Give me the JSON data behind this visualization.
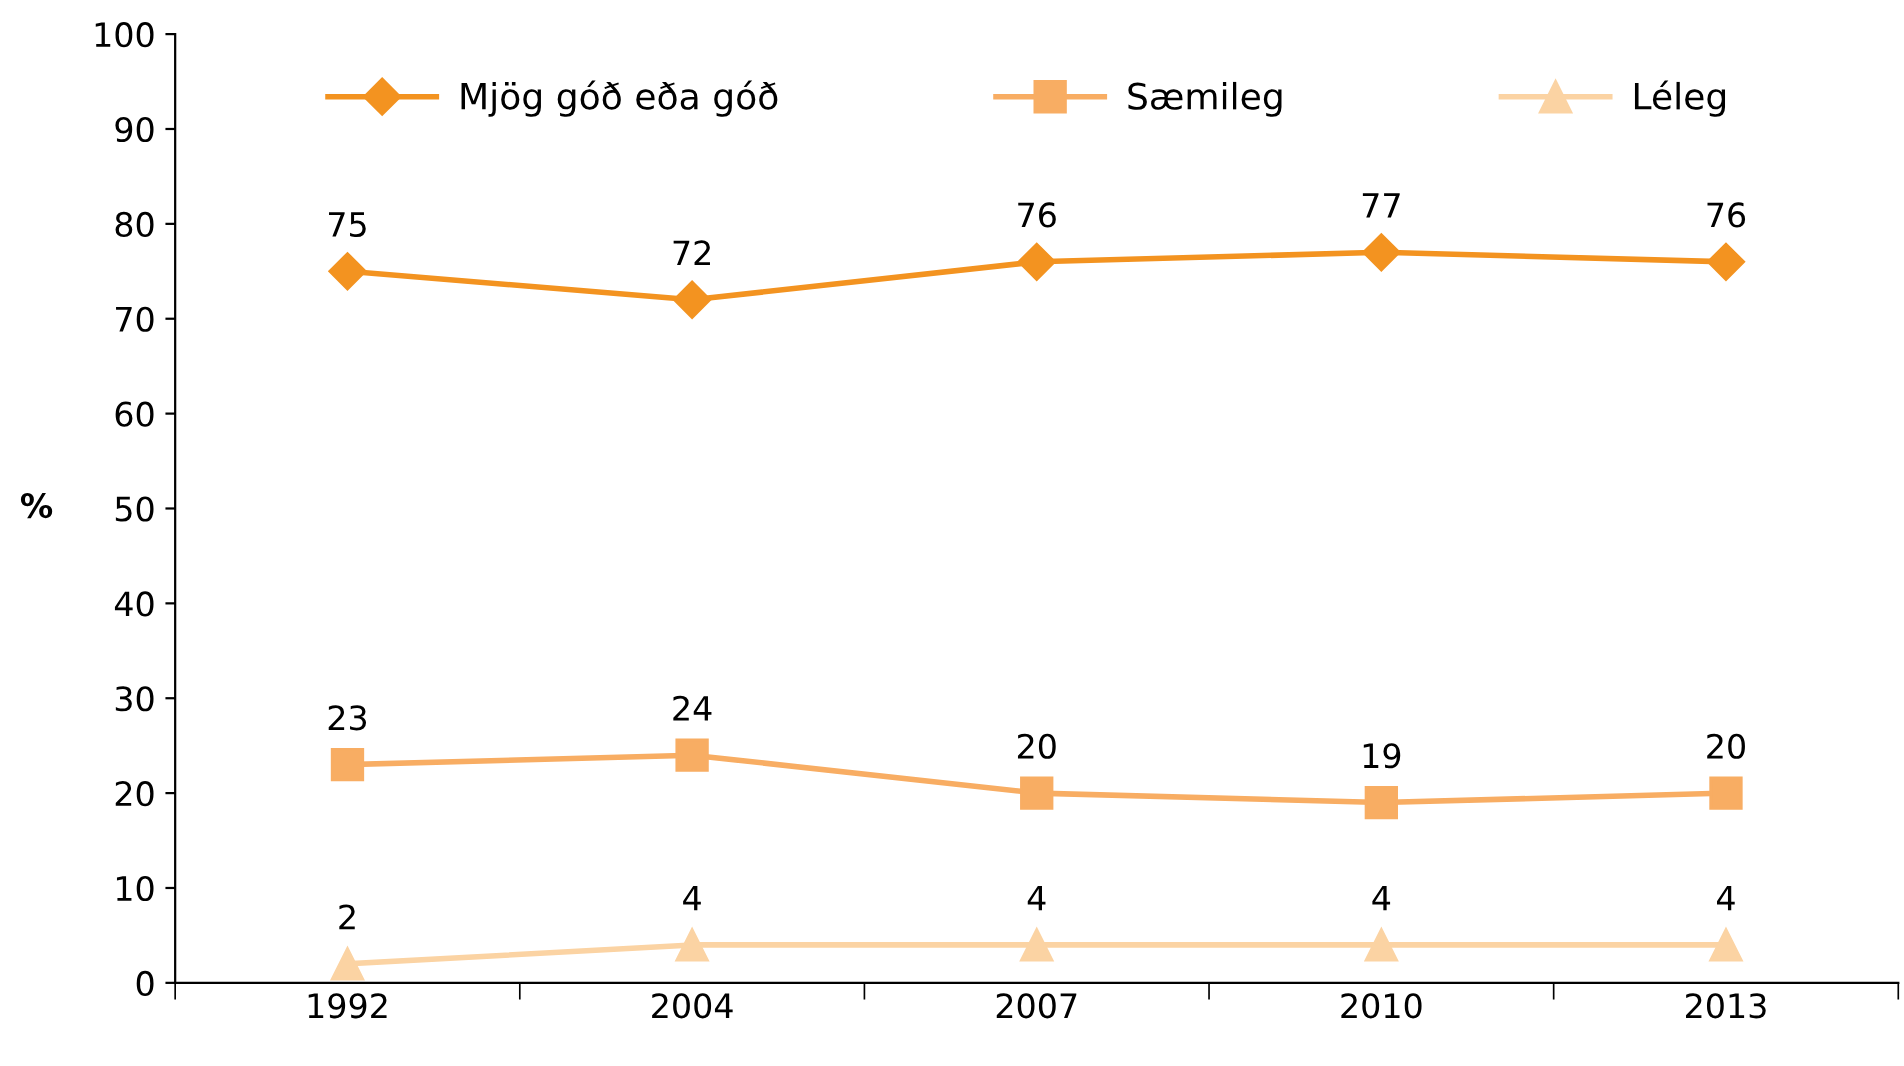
{
  "chart_data": {
    "type": "line",
    "ylabel": "%",
    "categories": [
      "1992",
      "2004",
      "2007",
      "2010",
      "2013"
    ],
    "series": [
      {
        "name": "Mjög góð eða góð",
        "color": "#f39320",
        "marker": "diamond",
        "values": [
          75,
          72,
          76,
          77,
          76
        ]
      },
      {
        "name": "Sæmileg",
        "color": "#f8ad63",
        "marker": "square",
        "values": [
          23,
          24,
          20,
          19,
          20
        ]
      },
      {
        "name": "Léleg",
        "color": "#fbd3a3",
        "marker": "triangle",
        "values": [
          2,
          4,
          4,
          4,
          4
        ]
      }
    ],
    "ylim": [
      0,
      100
    ],
    "yticks": [
      0,
      10,
      20,
      30,
      40,
      50,
      60,
      70,
      80,
      90,
      100
    ],
    "grid": false,
    "legend": "top",
    "data_labels": true,
    "line_style": "solid"
  }
}
